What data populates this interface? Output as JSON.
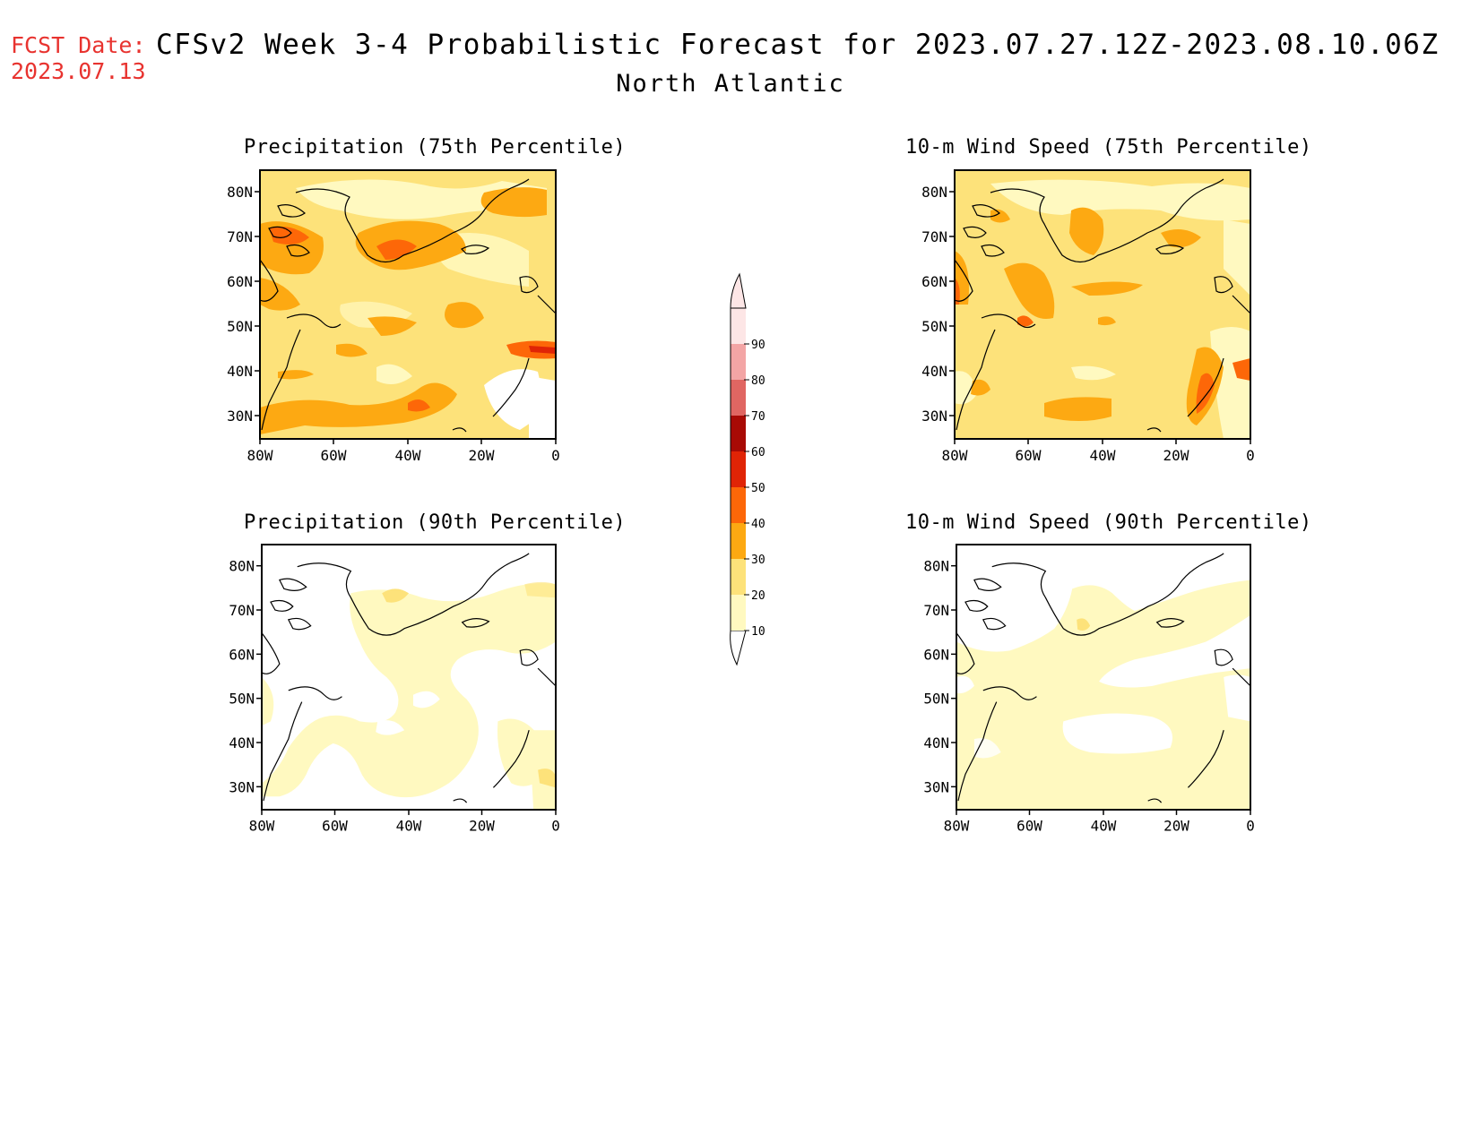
{
  "header": {
    "fcst_label": "FCST Date:",
    "fcst_date": "2023.07.13",
    "title": "CFSv2 Week 3-4 Probabilistic Forecast for 2023.07.27.12Z-2023.08.10.06Z",
    "subtitle": "North Atlantic"
  },
  "panels": [
    {
      "title": "Precipitation (75th Percentile)"
    },
    {
      "title": "10-m Wind Speed (75th Percentile)"
    },
    {
      "title": "Precipitation (90th Percentile)"
    },
    {
      "title": "10-m Wind Speed (90th Percentile)"
    }
  ],
  "axes": {
    "lat_ticks": [
      "80N",
      "70N",
      "60N",
      "50N",
      "40N",
      "30N"
    ],
    "lon_ticks": [
      "80W",
      "60W",
      "40W",
      "20W",
      "0"
    ],
    "lat_range": [
      25,
      85
    ],
    "lon_range": [
      -80,
      0
    ]
  },
  "colorbar": {
    "levels": [
      "10",
      "20",
      "30",
      "40",
      "50",
      "60",
      "70",
      "80",
      "90"
    ],
    "colors": [
      "#fff9c0",
      "#fde27a",
      "#fda912",
      "#fd6708",
      "#e02406",
      "#a80a05",
      "#e06662",
      "#f3a5a5",
      "#fde6e6"
    ]
  },
  "chart_data": {
    "type": "heatmap",
    "title": "CFSv2 Week 3-4 Probabilistic Forecast for 2023.07.27.12Z-2023.08.10.06Z",
    "subtitle": "North Atlantic",
    "xlabel": "",
    "ylabel": "",
    "xlim": [
      -80,
      0
    ],
    "ylim": [
      25,
      85
    ],
    "levels": [
      10,
      20,
      30,
      40,
      50,
      60,
      70,
      80,
      90
    ]
  }
}
